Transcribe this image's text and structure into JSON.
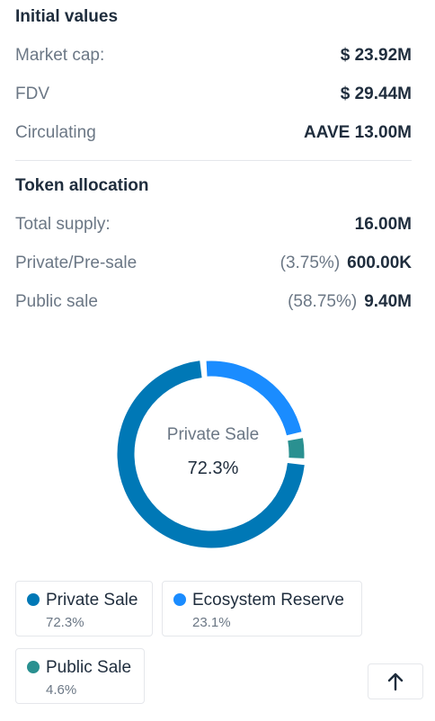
{
  "initial": {
    "title": "Initial values",
    "rows": [
      {
        "label": "Market cap:",
        "value": "$ 23.92M"
      },
      {
        "label": "FDV",
        "value": "$ 29.44M"
      },
      {
        "label": "Circulating",
        "value": "AAVE 13.00M"
      }
    ]
  },
  "allocation": {
    "title": "Token allocation",
    "total": {
      "label": "Total supply:",
      "value": "16.00M"
    },
    "private": {
      "label": "Private/Pre-sale",
      "percent": "(3.75%)",
      "value": "600.00K"
    },
    "public": {
      "label": "Public sale",
      "percent": "(58.75%)",
      "value": "9.40M"
    }
  },
  "donut": {
    "center_name": "Private Sale",
    "center_percent": "72.3%"
  },
  "chart_data": {
    "type": "pie",
    "categories": [
      "Private Sale",
      "Ecosystem Reserve",
      "Public Sale"
    ],
    "values": [
      72.3,
      23.1,
      4.6
    ],
    "colors": [
      "#0078b6",
      "#1a8cff",
      "#2a9090"
    ],
    "highlighted": "Private Sale"
  },
  "legend": [
    {
      "name": "Private Sale",
      "percent": "72.3%",
      "color": "#0078b6"
    },
    {
      "name": "Ecosystem Reserve",
      "percent": "23.1%",
      "color": "#1a8cff"
    },
    {
      "name": "Public Sale",
      "percent": "4.6%",
      "color": "#2a9090"
    }
  ],
  "scroll_top_icon": "arrow-up-icon"
}
